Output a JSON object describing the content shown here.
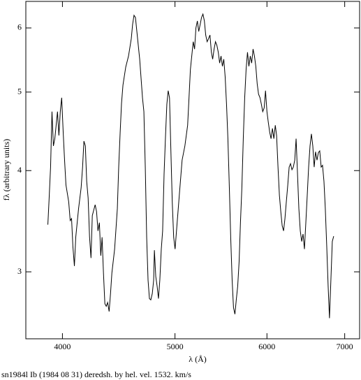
{
  "chart_data": {
    "type": "line",
    "title": "sn1984l Ib (1984 08 31) deredsh. by hel. vel.  1532. km/s",
    "x_label": "λ (Å)",
    "y_label": "fλ (arbitrary units)",
    "xscale": "log",
    "yscale": "log",
    "xlim": [
      3720,
      7210
    ],
    "ylim": [
      2.48,
      6.47
    ],
    "xticks": [
      4000,
      5000,
      6000,
      7000
    ],
    "yticks": [
      3,
      4,
      5,
      6
    ],
    "series": [
      {
        "color": "#000000",
        "x": [
          3886,
          3896,
          3907,
          3918,
          3929,
          3940,
          3961,
          3972,
          3983,
          3994,
          4006,
          4017,
          4028,
          4050,
          4062,
          4073,
          4084,
          4096,
          4107,
          4130,
          4151,
          4163,
          4174,
          4186,
          4197,
          4209,
          4221,
          4233,
          4244,
          4268,
          4280,
          4292,
          4304,
          4316,
          4327,
          4339,
          4351,
          4363,
          4375,
          4388,
          4400,
          4412,
          4436,
          4460,
          4472,
          4485,
          4497,
          4510,
          4535,
          4560,
          4585,
          4597,
          4610,
          4623,
          4636,
          4662,
          4688,
          4701,
          4714,
          4727,
          4740,
          4753,
          4766,
          4780,
          4793,
          4800,
          4813,
          4826,
          4839,
          4852,
          4866,
          4879,
          4893,
          4906,
          4920,
          4933,
          4946,
          4960,
          4973,
          4987,
          5001,
          5015,
          5043,
          5071,
          5099,
          5127,
          5141,
          5155,
          5169,
          5184,
          5198,
          5212,
          5227,
          5241,
          5256,
          5270,
          5285,
          5300,
          5314,
          5329,
          5344,
          5359,
          5374,
          5388,
          5403,
          5418,
          5433,
          5448,
          5463,
          5478,
          5493,
          5508,
          5523,
          5538,
          5553,
          5569,
          5584,
          5600,
          5615,
          5631,
          5646,
          5662,
          5678,
          5693,
          5709,
          5725,
          5741,
          5757,
          5773,
          5789,
          5805,
          5821,
          5837,
          5853,
          5869,
          5885,
          5901,
          5918,
          5934,
          5950,
          5967,
          5983,
          6000,
          6016,
          6033,
          6049,
          6066,
          6083,
          6100,
          6116,
          6133,
          6150,
          6167,
          6184,
          6201,
          6218,
          6235,
          6253,
          6270,
          6287,
          6305,
          6322,
          6340,
          6357,
          6375,
          6392,
          6410,
          6428,
          6445,
          6463,
          6481,
          6499,
          6517,
          6535,
          6553,
          6571,
          6589,
          6607,
          6626,
          6644,
          6662,
          6681,
          6699,
          6718,
          6736,
          6755,
          6774,
          6792,
          6811,
          6830,
          6849
        ],
        "values": [
          3.43,
          3.7,
          4.04,
          4.73,
          4.29,
          4.38,
          4.73,
          4.42,
          4.73,
          4.92,
          4.46,
          4.12,
          3.84,
          3.66,
          3.47,
          3.49,
          3.22,
          3.05,
          3.31,
          3.59,
          3.81,
          4.04,
          4.35,
          4.29,
          3.88,
          3.7,
          3.31,
          3.12,
          3.52,
          3.63,
          3.56,
          3.37,
          3.45,
          3.14,
          3.31,
          2.99,
          2.74,
          2.72,
          2.75,
          2.68,
          2.82,
          2.99,
          3.2,
          3.59,
          4.04,
          4.46,
          4.84,
          5.1,
          5.37,
          5.54,
          5.82,
          6.06,
          6.22,
          6.18,
          5.94,
          5.49,
          4.92,
          4.73,
          4.04,
          3.31,
          2.93,
          2.78,
          2.77,
          2.82,
          2.93,
          3.19,
          2.96,
          2.88,
          2.78,
          2.93,
          3.2,
          3.37,
          3.96,
          4.38,
          4.83,
          5.02,
          4.92,
          4.21,
          3.66,
          3.31,
          3.2,
          3.37,
          3.73,
          4.12,
          4.29,
          4.55,
          4.92,
          5.33,
          5.54,
          5.77,
          5.65,
          6.0,
          6.12,
          5.94,
          6.06,
          6.18,
          6.24,
          6.12,
          5.88,
          5.77,
          5.82,
          5.88,
          5.6,
          5.49,
          5.65,
          5.77,
          5.71,
          5.6,
          5.43,
          5.54,
          5.38,
          5.49,
          5.22,
          4.83,
          4.38,
          3.81,
          3.31,
          2.93,
          2.71,
          2.66,
          2.77,
          2.88,
          3.09,
          3.45,
          3.81,
          4.38,
          4.92,
          5.33,
          5.6,
          5.38,
          5.54,
          5.43,
          5.65,
          5.54,
          5.38,
          5.12,
          4.97,
          4.92,
          4.83,
          4.73,
          4.78,
          5.02,
          4.73,
          4.59,
          4.46,
          4.38,
          4.51,
          4.38,
          4.55,
          4.42,
          4.04,
          3.73,
          3.56,
          3.42,
          3.37,
          3.49,
          3.66,
          3.84,
          4.04,
          4.08,
          4.01,
          4.04,
          4.12,
          4.38,
          3.96,
          3.59,
          3.37,
          3.27,
          3.34,
          3.2,
          3.45,
          3.73,
          4.04,
          4.29,
          4.44,
          4.29,
          4.04,
          4.22,
          4.12,
          4.21,
          4.23,
          4.04,
          4.06,
          3.88,
          3.59,
          3.23,
          2.88,
          2.63,
          2.93,
          3.27,
          3.32
        ]
      }
    ]
  }
}
